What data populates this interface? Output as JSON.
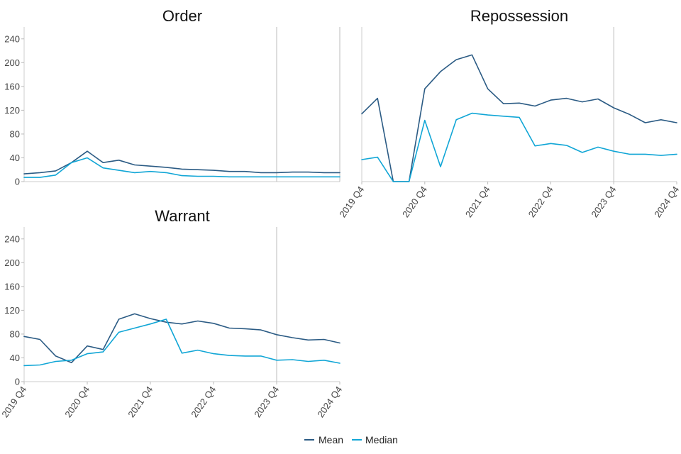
{
  "chart_data": [
    {
      "type": "line",
      "title": "Order",
      "x": [
        "2019 Q4",
        "2020 Q1",
        "2020 Q2",
        "2020 Q3",
        "2020 Q4",
        "2021 Q1",
        "2021 Q2",
        "2021 Q3",
        "2021 Q4",
        "2022 Q1",
        "2022 Q2",
        "2022 Q3",
        "2022 Q4",
        "2023 Q1",
        "2023 Q2",
        "2023 Q3",
        "2023 Q4",
        "2024 Q1",
        "2024 Q2",
        "2024 Q3",
        "2024 Q4"
      ],
      "x_ticks": [],
      "y_ticks": [
        0,
        40,
        80,
        120,
        160,
        200,
        240
      ],
      "ylim": [
        0,
        260
      ],
      "reference_line": "2023 Q4",
      "series": [
        {
          "name": "Mean",
          "color": "#2b5b84",
          "values": [
            13,
            15,
            18,
            32,
            51,
            32,
            36,
            28,
            26,
            24,
            21,
            20,
            19,
            17,
            17,
            15,
            15,
            16,
            16,
            15,
            15
          ]
        },
        {
          "name": "Median",
          "color": "#11a6d6",
          "values": [
            7,
            7,
            11,
            32,
            40,
            23,
            19,
            15,
            17,
            15,
            10,
            9,
            9,
            8,
            8,
            8,
            8,
            8,
            8,
            8,
            8
          ]
        }
      ]
    },
    {
      "type": "line",
      "title": "Repossession",
      "x": [
        "2019 Q4",
        "2020 Q1",
        "2020 Q2",
        "2020 Q3",
        "2020 Q4",
        "2021 Q1",
        "2021 Q2",
        "2021 Q3",
        "2021 Q4",
        "2022 Q1",
        "2022 Q2",
        "2022 Q3",
        "2022 Q4",
        "2023 Q1",
        "2023 Q2",
        "2023 Q3",
        "2023 Q4",
        "2024 Q1",
        "2024 Q2",
        "2024 Q3",
        "2024 Q4"
      ],
      "x_ticks": [
        "2019 Q4",
        "2020 Q4",
        "2021 Q4",
        "2022 Q4",
        "2023 Q4",
        "2024 Q4"
      ],
      "y_ticks": [],
      "ylim": [
        0,
        260
      ],
      "reference_line": "2023 Q4",
      "series": [
        {
          "name": "Mean",
          "color": "#2b5b84",
          "values": [
            114,
            140,
            0,
            0,
            156,
            185,
            205,
            213,
            156,
            131,
            132,
            127,
            137,
            140,
            134,
            139,
            124,
            113,
            99,
            104,
            99
          ]
        },
        {
          "name": "Median",
          "color": "#11a6d6",
          "values": [
            37,
            41,
            0,
            0,
            103,
            25,
            104,
            115,
            112,
            110,
            108,
            60,
            64,
            61,
            49,
            58,
            51,
            46,
            46,
            44,
            46
          ]
        }
      ]
    },
    {
      "type": "line",
      "title": "Warrant",
      "x": [
        "2019 Q4",
        "2020 Q1",
        "2020 Q2",
        "2020 Q3",
        "2020 Q4",
        "2021 Q1",
        "2021 Q2",
        "2021 Q3",
        "2021 Q4",
        "2022 Q1",
        "2022 Q2",
        "2022 Q3",
        "2022 Q4",
        "2023 Q1",
        "2023 Q2",
        "2023 Q3",
        "2023 Q4",
        "2024 Q1",
        "2024 Q2",
        "2024 Q3",
        "2024 Q4"
      ],
      "x_ticks": [
        "2019 Q4",
        "2020 Q4",
        "2021 Q4",
        "2022 Q4",
        "2023 Q4",
        "2024 Q4"
      ],
      "y_ticks": [
        0,
        40,
        80,
        120,
        160,
        200,
        240
      ],
      "ylim": [
        0,
        260
      ],
      "reference_line": "2023 Q4",
      "series": [
        {
          "name": "Mean",
          "color": "#2b5b84",
          "values": [
            76,
            71,
            43,
            32,
            60,
            54,
            105,
            114,
            106,
            100,
            97,
            102,
            98,
            90,
            89,
            87,
            79,
            74,
            70,
            71,
            65
          ]
        },
        {
          "name": "Median",
          "color": "#11a6d6",
          "values": [
            27,
            28,
            34,
            36,
            47,
            50,
            83,
            90,
            97,
            105,
            48,
            53,
            47,
            44,
            43,
            43,
            36,
            37,
            34,
            36,
            31
          ]
        }
      ]
    }
  ],
  "legend": {
    "placement": "bottom-center",
    "items": [
      {
        "label": "Mean",
        "color": "#2b5b84"
      },
      {
        "label": "Median",
        "color": "#11a6d6"
      }
    ]
  }
}
